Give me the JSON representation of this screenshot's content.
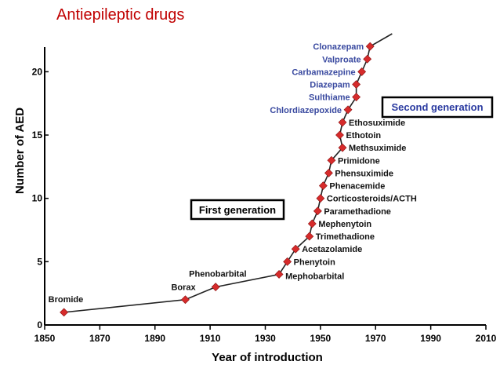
{
  "title": "Antiepileptic drugs",
  "colors": {
    "title": "#c00000",
    "marker": "#d62b2b",
    "blue_label": "#3a4aa0",
    "second_gen": "#2a3aa0"
  },
  "chart_data": {
    "type": "line",
    "xlabel": "Year of introduction",
    "ylabel": "Number of AED",
    "xlim": [
      1850,
      2010
    ],
    "ylim": [
      0,
      23
    ],
    "xticks": [
      1850,
      1870,
      1890,
      1910,
      1930,
      1950,
      1970,
      1990,
      2010
    ],
    "yticks": [
      0,
      5,
      10,
      15,
      20
    ],
    "grid": false,
    "annotations": [
      {
        "text": "First generation",
        "style": "boxed"
      },
      {
        "text": "Second generation",
        "style": "boxed",
        "color": "#2a3aa0"
      }
    ],
    "points": [
      {
        "x": 1857,
        "y": 1,
        "label": "Bromide"
      },
      {
        "x": 1901,
        "y": 2,
        "label": "Borax"
      },
      {
        "x": 1912,
        "y": 3,
        "label": "Phenobarbital"
      },
      {
        "x": 1935,
        "y": 4,
        "label": "Mephobarbital"
      },
      {
        "x": 1938,
        "y": 5,
        "label": "Phenytoin"
      },
      {
        "x": 1941,
        "y": 6,
        "label": "Acetazolamide"
      },
      {
        "x": 1946,
        "y": 7,
        "label": "Trimethadione"
      },
      {
        "x": 1947,
        "y": 8,
        "label": "Mephenytoin"
      },
      {
        "x": 1949,
        "y": 9,
        "label": "Paramethadione"
      },
      {
        "x": 1950,
        "y": 10,
        "label": "Corticosteroids/ACTH"
      },
      {
        "x": 1951,
        "y": 11,
        "label": "Phenacemide"
      },
      {
        "x": 1953,
        "y": 12,
        "label": "Phensuximide"
      },
      {
        "x": 1954,
        "y": 13,
        "label": "Primidone"
      },
      {
        "x": 1958,
        "y": 14,
        "label": "Methsuximide"
      },
      {
        "x": 1957,
        "y": 15,
        "label": "Ethotoin"
      },
      {
        "x": 1958,
        "y": 16,
        "label": "Ethosuximide"
      },
      {
        "x": 1960,
        "y": 17,
        "label": "Chlordiazepoxide"
      },
      {
        "x": 1963,
        "y": 18,
        "label": "Sulthiame"
      },
      {
        "x": 1963,
        "y": 19,
        "label": "Diazepam"
      },
      {
        "x": 1965,
        "y": 20,
        "label": "Carbamazepine"
      },
      {
        "x": 1967,
        "y": 21,
        "label": "Valproate"
      },
      {
        "x": 1968,
        "y": 22,
        "label": "Clonazepam"
      }
    ],
    "line_extends_to": {
      "x": 1976,
      "y": 23
    }
  }
}
